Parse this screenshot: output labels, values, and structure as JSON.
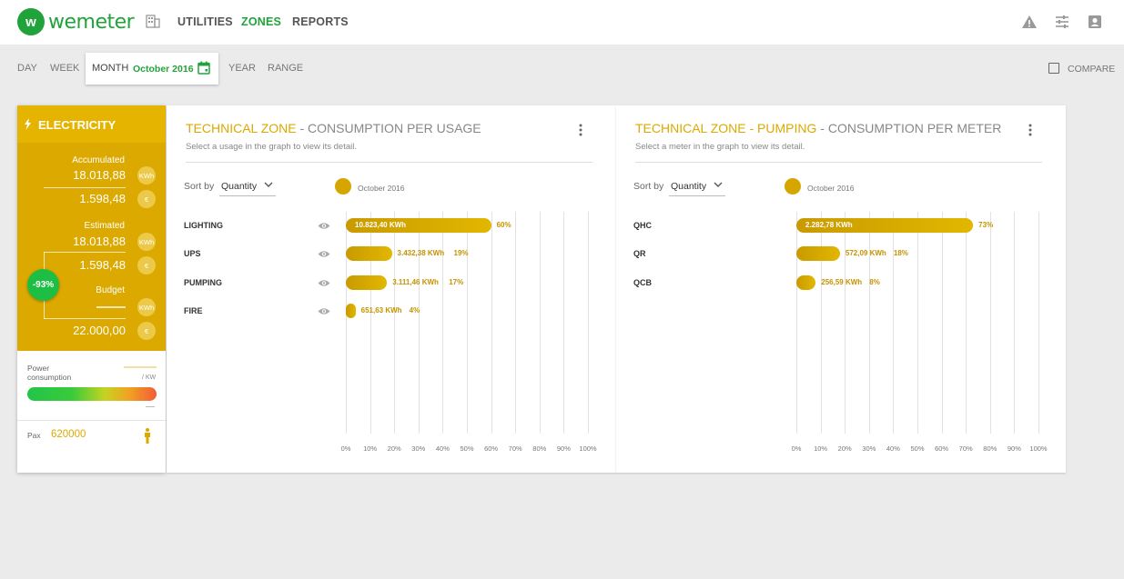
{
  "brand": {
    "name": "wemeter",
    "accent": "#21a33b",
    "gold": "#dca900"
  },
  "nav": {
    "items": [
      "UTILITIES",
      "ZONES",
      "REPORTS"
    ],
    "active": "ZONES",
    "icons": [
      "building-icon",
      "alert-icon",
      "tune-icon",
      "account-icon"
    ]
  },
  "period": {
    "day": "DAY",
    "week": "WEEK",
    "month_label": "MONTH",
    "month_value": "October 2016",
    "year": "YEAR",
    "range": "RANGE",
    "compare": "COMPARE"
  },
  "summary": {
    "title": "ELECTRICITY",
    "accumulated_label": "Accumulated",
    "accumulated_kwh": "18.018,88",
    "accumulated_eur": "1.598,48",
    "estimated_label": "Estimated",
    "estimated_kwh": "18.018,88",
    "estimated_eur": "1.598,48",
    "budget_label": "Budget",
    "budget_eur": "22.000,00",
    "unit_kwh": "KWh",
    "unit_eur": "€",
    "badge": "-93%",
    "power_label_1": "Power",
    "power_label_2": "consumption",
    "power_unit": "/ KW",
    "pax_label": "Pax",
    "pax_value": "620000"
  },
  "panels": [
    {
      "zone": "TECHNICAL ZONE",
      "title_rest": " - CONSUMPTION PER USAGE",
      "subtitle": "Select a usage in the graph to view its detail.",
      "sort_label": "Sort by",
      "sort_value": "Quantity",
      "legend": "October 2016"
    },
    {
      "zone": "TECHNICAL ZONE - PUMPING",
      "title_rest": " - CONSUMPTION PER METER",
      "subtitle": "Select a meter in the graph to view its detail.",
      "sort_label": "Sort by",
      "sort_value": "Quantity",
      "legend": "October 2016"
    }
  ],
  "chart_data": [
    {
      "type": "bar",
      "orientation": "horizontal",
      "title": "TECHNICAL ZONE - CONSUMPTION PER USAGE",
      "categories": [
        "LIGHTING",
        "UPS",
        "PUMPING",
        "FIRE"
      ],
      "value_labels": [
        "10.823,40 KWh",
        "3.432,38 KWh",
        "3.111,46 KWh",
        "651,63 KWh"
      ],
      "values": [
        60,
        19,
        17,
        4
      ],
      "percent_labels": [
        "60%",
        "19%",
        "17%",
        "4%"
      ],
      "series_name": "October 2016",
      "xlim": [
        0,
        100
      ],
      "ticks": [
        "0%",
        "10%",
        "20%",
        "30%",
        "40%",
        "50%",
        "60%",
        "70%",
        "80%",
        "90%",
        "100%"
      ]
    },
    {
      "type": "bar",
      "orientation": "horizontal",
      "title": "TECHNICAL ZONE - PUMPING - CONSUMPTION PER METER",
      "categories": [
        "QHC",
        "QR",
        "QCB"
      ],
      "value_labels": [
        "2.282,78 KWh",
        "572,09 KWh",
        "256,59 KWh"
      ],
      "values": [
        73,
        18,
        8
      ],
      "percent_labels": [
        "73%",
        "18%",
        "8%"
      ],
      "series_name": "October 2016",
      "xlim": [
        0,
        100
      ],
      "ticks": [
        "0%",
        "10%",
        "20%",
        "30%",
        "40%",
        "50%",
        "60%",
        "70%",
        "80%",
        "90%",
        "100%"
      ]
    }
  ]
}
